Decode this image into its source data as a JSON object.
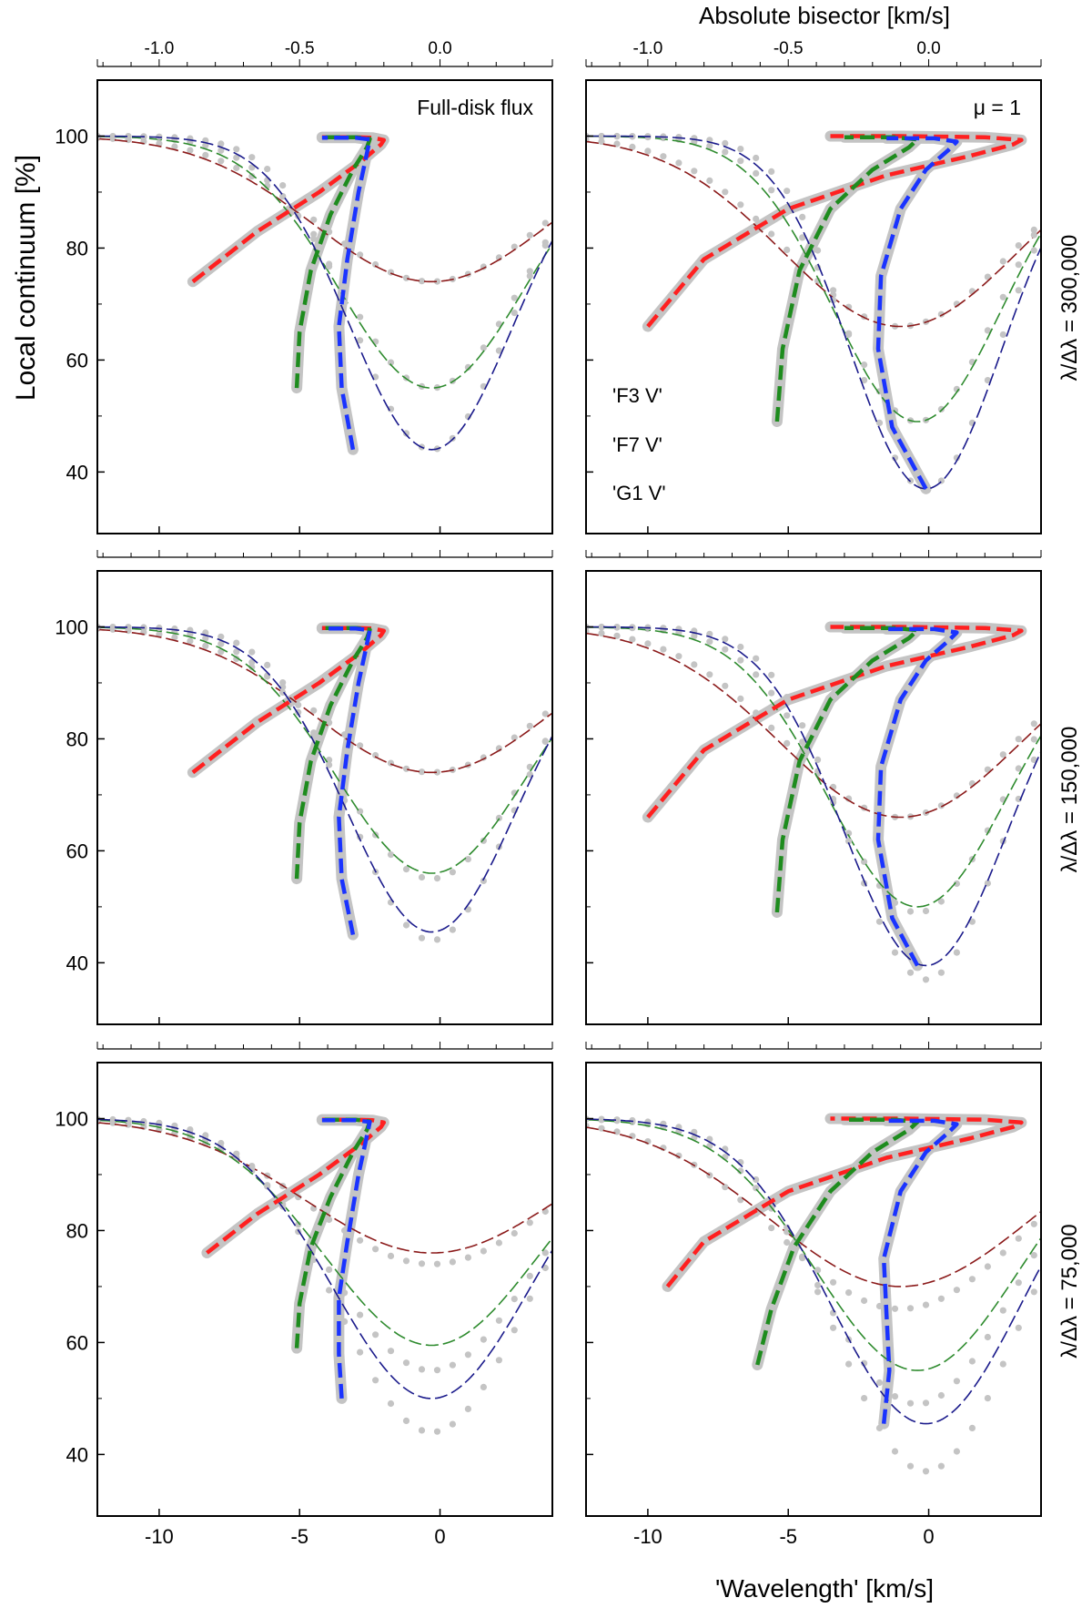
{
  "figure": {
    "top_axis_label": "Absolute bisector [km/s]",
    "bottom_axis_label": "'Wavelength' [km/s]",
    "left_axis_label": "Local continuum [%]",
    "column_labels": [
      "Full-disk flux",
      "μ = 1"
    ],
    "row_labels": [
      "λ/Δλ = 300,000",
      "λ/Δλ = 150,000",
      "λ/Δλ = 75,000"
    ],
    "legend": [
      {
        "label": "'F3 V'",
        "color": "#8b1a1a"
      },
      {
        "label": "'F7 V'",
        "color": "#2e8b2e"
      },
      {
        "label": "'G1 V'",
        "color": "#1a1a8b"
      }
    ]
  },
  "chart_data": {
    "type": "line",
    "x_range": [
      -12.2,
      4.0
    ],
    "y_range": [
      29,
      110
    ],
    "top_x_range": [
      -1.22,
      0.4
    ],
    "x_ticks": [
      -10,
      -5,
      0
    ],
    "y_ticks": [
      40,
      60,
      80,
      100
    ],
    "top_x_ticks": [
      -1.0,
      -0.5,
      0.0
    ],
    "grid": false,
    "colors": {
      "f3_profile": "#8b1a1a",
      "f7_profile": "#2e8b2e",
      "g1_profile": "#1a1a8b",
      "f3_bisector": "#ff2020",
      "f7_bisector": "#1e8c1e",
      "g1_bisector": "#1a33ff",
      "reference": "#c4c4c4"
    },
    "panels": [
      {
        "column": "Full-disk flux",
        "resolution": "λ/Δλ = 300,000",
        "profiles": [
          {
            "star": "F3 V",
            "depth_min": 74,
            "center": -0.3,
            "width": 4.2,
            "min_ref": 74
          },
          {
            "star": "F7 V",
            "depth_min": 55,
            "center": -0.3,
            "width": 3.3,
            "min_ref": 55
          },
          {
            "star": "G1 V",
            "depth_min": 44,
            "center": -0.3,
            "width": 2.9,
            "min_ref": 44
          }
        ],
        "bisectors": [
          {
            "star": "F3 V",
            "points": [
              [
                -8.8,
                74
              ],
              [
                -6.5,
                83
              ],
              [
                -4.3,
                90
              ],
              [
                -2.8,
                95.5
              ],
              [
                -2.1,
                98.5
              ],
              [
                -2.0,
                99.3
              ],
              [
                -2.4,
                99.7
              ],
              [
                -3.0,
                99.8
              ],
              [
                -4.2,
                99.8
              ]
            ]
          },
          {
            "star": "F7 V",
            "points": [
              [
                -5.1,
                55
              ],
              [
                -5.0,
                65
              ],
              [
                -4.6,
                76
              ],
              [
                -3.9,
                86
              ],
              [
                -3.1,
                94
              ],
              [
                -2.6,
                98
              ],
              [
                -2.5,
                99.5
              ],
              [
                -3.0,
                99.8
              ],
              [
                -4.2,
                99.8
              ]
            ]
          },
          {
            "star": "G1 V",
            "points": [
              [
                -3.1,
                44
              ],
              [
                -3.5,
                55
              ],
              [
                -3.6,
                66
              ],
              [
                -3.3,
                78
              ],
              [
                -2.9,
                90
              ],
              [
                -2.6,
                97
              ],
              [
                -2.5,
                99.4
              ],
              [
                -3.0,
                99.7
              ],
              [
                -4.2,
                99.7
              ]
            ]
          }
        ]
      },
      {
        "column": "μ = 1",
        "resolution": "λ/Δλ = 300,000",
        "profiles": [
          {
            "star": "F3 V",
            "depth_min": 66,
            "center": -1.0,
            "width": 4.2,
            "min_ref": 66
          },
          {
            "star": "F7 V",
            "depth_min": 49,
            "center": -0.4,
            "width": 3.0,
            "min_ref": 49
          },
          {
            "star": "G1 V",
            "depth_min": 37,
            "center": -0.1,
            "width": 2.7,
            "min_ref": 37
          }
        ],
        "bisectors": [
          {
            "star": "F3 V",
            "points": [
              [
                -10.0,
                66
              ],
              [
                -8.0,
                78
              ],
              [
                -5.0,
                87
              ],
              [
                -1.5,
                93
              ],
              [
                1.5,
                96.5
              ],
              [
                3.0,
                98.5
              ],
              [
                3.3,
                99.3
              ],
              [
                2.0,
                99.8
              ],
              [
                -1.0,
                100
              ],
              [
                -3.5,
                100
              ]
            ]
          },
          {
            "star": "F7 V",
            "points": [
              [
                -5.4,
                49
              ],
              [
                -5.2,
                62
              ],
              [
                -4.6,
                76
              ],
              [
                -3.5,
                87
              ],
              [
                -2.0,
                94
              ],
              [
                -0.7,
                98
              ],
              [
                -0.4,
                99.4
              ],
              [
                -1.2,
                99.8
              ],
              [
                -3.0,
                99.8
              ]
            ]
          },
          {
            "star": "G1 V",
            "points": [
              [
                -0.1,
                37
              ],
              [
                -1.3,
                48
              ],
              [
                -1.8,
                62
              ],
              [
                -1.7,
                75
              ],
              [
                -1.0,
                87
              ],
              [
                -0.1,
                94
              ],
              [
                0.7,
                97.5
              ],
              [
                1.0,
                99
              ],
              [
                0.2,
                99.6
              ],
              [
                -1.5,
                99.6
              ]
            ]
          }
        ]
      },
      {
        "column": "Full-disk flux",
        "resolution": "λ/Δλ = 150,000",
        "profiles": [
          {
            "star": "F3 V",
            "depth_min": 74,
            "center": -0.3,
            "width": 4.2,
            "min_ref": 74
          },
          {
            "star": "F7 V",
            "depth_min": 56,
            "center": -0.3,
            "width": 3.4,
            "min_ref": 55
          },
          {
            "star": "G1 V",
            "depth_min": 45.5,
            "center": -0.3,
            "width": 3.0,
            "min_ref": 44
          }
        ],
        "bisectors": [
          {
            "star": "F3 V",
            "points": [
              [
                -8.8,
                74
              ],
              [
                -6.5,
                83
              ],
              [
                -4.3,
                90
              ],
              [
                -2.8,
                95.5
              ],
              [
                -2.1,
                98.5
              ],
              [
                -2.0,
                99.3
              ],
              [
                -2.4,
                99.7
              ],
              [
                -3.0,
                99.8
              ],
              [
                -4.2,
                99.8
              ]
            ]
          },
          {
            "star": "F7 V",
            "points": [
              [
                -5.1,
                55
              ],
              [
                -5.0,
                65
              ],
              [
                -4.6,
                76
              ],
              [
                -3.9,
                86
              ],
              [
                -3.1,
                94
              ],
              [
                -2.6,
                98
              ],
              [
                -2.5,
                99.5
              ],
              [
                -3.0,
                99.8
              ],
              [
                -4.2,
                99.8
              ]
            ]
          },
          {
            "star": "G1 V",
            "points": [
              [
                -3.1,
                45
              ],
              [
                -3.5,
                55
              ],
              [
                -3.6,
                66
              ],
              [
                -3.3,
                78
              ],
              [
                -2.9,
                90
              ],
              [
                -2.6,
                97
              ],
              [
                -2.5,
                99.4
              ],
              [
                -3.0,
                99.7
              ],
              [
                -4.2,
                99.7
              ]
            ]
          }
        ]
      },
      {
        "column": "μ = 1",
        "resolution": "λ/Δλ = 150,000",
        "profiles": [
          {
            "star": "F3 V",
            "depth_min": 66,
            "center": -1.0,
            "width": 4.3,
            "min_ref": 66
          },
          {
            "star": "F7 V",
            "depth_min": 50,
            "center": -0.4,
            "width": 3.2,
            "min_ref": 49
          },
          {
            "star": "G1 V",
            "depth_min": 39.5,
            "center": -0.1,
            "width": 2.9,
            "min_ref": 37
          }
        ],
        "bisectors": [
          {
            "star": "F3 V",
            "points": [
              [
                -10.0,
                66
              ],
              [
                -8.0,
                78
              ],
              [
                -5.0,
                87
              ],
              [
                -1.5,
                93
              ],
              [
                1.5,
                96.5
              ],
              [
                3.0,
                98.5
              ],
              [
                3.3,
                99.3
              ],
              [
                2.0,
                99.8
              ],
              [
                -1.0,
                100
              ],
              [
                -3.5,
                100
              ]
            ]
          },
          {
            "star": "F7 V",
            "points": [
              [
                -5.4,
                49
              ],
              [
                -5.2,
                62
              ],
              [
                -4.6,
                76
              ],
              [
                -3.5,
                87
              ],
              [
                -2.0,
                94
              ],
              [
                -0.7,
                98
              ],
              [
                -0.4,
                99.4
              ],
              [
                -1.2,
                99.8
              ],
              [
                -3.0,
                99.8
              ]
            ]
          },
          {
            "star": "G1 V",
            "points": [
              [
                -0.4,
                39.5
              ],
              [
                -1.3,
                48
              ],
              [
                -1.8,
                62
              ],
              [
                -1.7,
                75
              ],
              [
                -1.0,
                87
              ],
              [
                -0.1,
                94
              ],
              [
                0.7,
                97.5
              ],
              [
                1.0,
                99
              ],
              [
                0.2,
                99.6
              ],
              [
                -1.5,
                99.6
              ]
            ]
          }
        ]
      },
      {
        "column": "Full-disk flux",
        "resolution": "λ/Δλ = 75,000",
        "profiles": [
          {
            "star": "F3 V",
            "depth_min": 76,
            "center": -0.3,
            "width": 4.5,
            "min_ref": 74
          },
          {
            "star": "F7 V",
            "depth_min": 59.5,
            "center": -0.3,
            "width": 3.8,
            "min_ref": 55
          },
          {
            "star": "G1 V",
            "depth_min": 50,
            "center": -0.3,
            "width": 3.5,
            "min_ref": 44
          }
        ],
        "bisectors": [
          {
            "star": "F3 V",
            "points": [
              [
                -8.3,
                76
              ],
              [
                -6.5,
                83
              ],
              [
                -4.3,
                90
              ],
              [
                -2.8,
                95.5
              ],
              [
                -2.1,
                98.5
              ],
              [
                -2.0,
                99.3
              ],
              [
                -2.4,
                99.7
              ],
              [
                -3.0,
                99.8
              ],
              [
                -4.2,
                99.8
              ]
            ]
          },
          {
            "star": "F7 V",
            "points": [
              [
                -5.1,
                59
              ],
              [
                -5.0,
                67
              ],
              [
                -4.6,
                77
              ],
              [
                -3.9,
                86
              ],
              [
                -3.1,
                94
              ],
              [
                -2.6,
                98
              ],
              [
                -2.5,
                99.5
              ],
              [
                -3.0,
                99.8
              ],
              [
                -4.2,
                99.8
              ]
            ]
          },
          {
            "star": "G1 V",
            "points": [
              [
                -3.5,
                50
              ],
              [
                -3.6,
                58
              ],
              [
                -3.6,
                68
              ],
              [
                -3.3,
                78
              ],
              [
                -2.9,
                90
              ],
              [
                -2.6,
                97
              ],
              [
                -2.5,
                99.4
              ],
              [
                -3.0,
                99.7
              ],
              [
                -4.2,
                99.7
              ]
            ]
          }
        ]
      },
      {
        "column": "μ = 1",
        "resolution": "λ/Δλ = 75,000",
        "profiles": [
          {
            "star": "F3 V",
            "depth_min": 70,
            "center": -1.0,
            "width": 4.6,
            "min_ref": 66
          },
          {
            "star": "F7 V",
            "depth_min": 55,
            "center": -0.4,
            "width": 3.6,
            "min_ref": 49
          },
          {
            "star": "G1 V",
            "depth_min": 45.5,
            "center": -0.1,
            "width": 3.4,
            "min_ref": 37
          }
        ],
        "bisectors": [
          {
            "star": "F3 V",
            "points": [
              [
                -9.3,
                70
              ],
              [
                -8.0,
                78
              ],
              [
                -5.0,
                87
              ],
              [
                -1.5,
                93
              ],
              [
                1.5,
                96.5
              ],
              [
                3.0,
                98.5
              ],
              [
                3.3,
                99.3
              ],
              [
                2.0,
                99.8
              ],
              [
                -1.0,
                100
              ],
              [
                -3.5,
                100
              ]
            ]
          },
          {
            "star": "F7 V",
            "points": [
              [
                -6.1,
                56
              ],
              [
                -5.6,
                66
              ],
              [
                -4.8,
                77
              ],
              [
                -3.5,
                87
              ],
              [
                -2.0,
                94
              ],
              [
                -0.7,
                98
              ],
              [
                -0.4,
                99.4
              ],
              [
                -1.2,
                99.8
              ],
              [
                -3.0,
                99.8
              ]
            ]
          },
          {
            "star": "G1 V",
            "points": [
              [
                -1.6,
                45.5
              ],
              [
                -1.4,
                55
              ],
              [
                -1.5,
                65
              ],
              [
                -1.6,
                75
              ],
              [
                -1.0,
                87
              ],
              [
                -0.1,
                94
              ],
              [
                0.7,
                97.5
              ],
              [
                1.0,
                99
              ],
              [
                0.2,
                99.6
              ],
              [
                -1.5,
                99.6
              ]
            ]
          }
        ]
      }
    ]
  }
}
